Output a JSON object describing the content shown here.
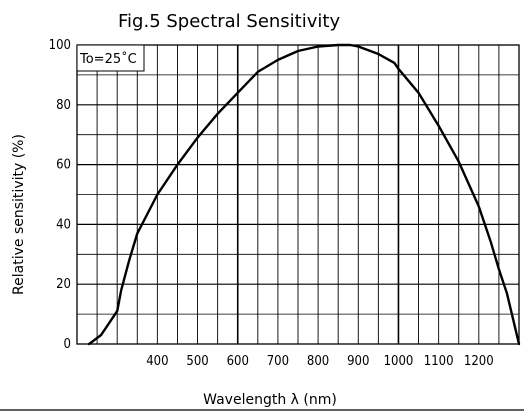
{
  "chart_data": {
    "type": "line",
    "title": "Fig.5 Spectral Sensitivity",
    "xlabel": "Wavelength λ (nm)",
    "ylabel": "Relative sensitivity (%)",
    "annotation": "To=25˚C",
    "xlim": [
      200,
      1300
    ],
    "ylim": [
      0,
      100
    ],
    "x_ticks": [
      400,
      500,
      600,
      700,
      800,
      900,
      1000,
      1100,
      1200
    ],
    "y_ticks": [
      0,
      20,
      40,
      60,
      80,
      100
    ],
    "grid": true,
    "series": [
      {
        "x": [
          230,
          260,
          300,
          310,
          330,
          350,
          400,
          450,
          500,
          550,
          600,
          650,
          700,
          750,
          800,
          850,
          880,
          900,
          950,
          990,
          1000,
          1050,
          1100,
          1150,
          1200,
          1230,
          1250,
          1270,
          1300
        ],
        "y": [
          0,
          3,
          11,
          18,
          28,
          37,
          50,
          60,
          69,
          77,
          84,
          91,
          95,
          98,
          99.5,
          100,
          100,
          99.5,
          97,
          94,
          92,
          84,
          73,
          61,
          46,
          34,
          25,
          17,
          0
        ]
      }
    ]
  }
}
